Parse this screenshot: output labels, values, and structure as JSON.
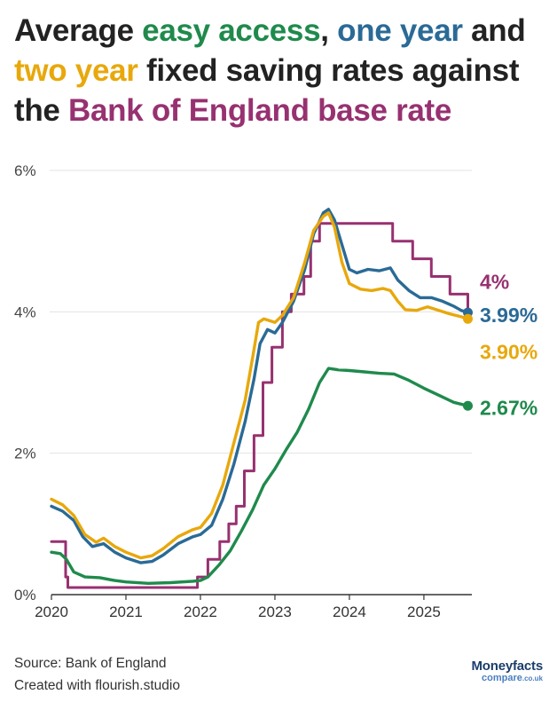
{
  "title": {
    "line1_prefix": "Average ",
    "easy_access": "easy access",
    "sep1": ", ",
    "one_year": "one year",
    "and": " and",
    "two_year": "two year",
    "fixed_text": " fixed saving rates against",
    "the": "the ",
    "boe": "Bank of England base rate"
  },
  "footer": {
    "source": "Source: Bank of England",
    "created": "Created with flourish.studio"
  },
  "logo": {
    "top": "Moneyfacts",
    "bottom": "compare",
    "suffix": ".co.uk"
  },
  "colors": {
    "easy_access": "#1f8a4c",
    "one_year": "#2a6a96",
    "two_year": "#e8a80c",
    "base_rate": "#973170",
    "grid": "#e3e3e3",
    "axis": "#333333"
  },
  "chart_data": {
    "type": "line",
    "xlim": [
      2020.0,
      2025.62
    ],
    "ylim": [
      0,
      6
    ],
    "x_ticks": [
      {
        "value": 2020,
        "label": "2020"
      },
      {
        "value": 2021,
        "label": "2021"
      },
      {
        "value": 2022,
        "label": "2022"
      },
      {
        "value": 2023,
        "label": "2023"
      },
      {
        "value": 2024,
        "label": "2024"
      },
      {
        "value": 2025,
        "label": "2025"
      }
    ],
    "y_ticks": [
      {
        "value": 0,
        "label": "0%"
      },
      {
        "value": 2,
        "label": "2%"
      },
      {
        "value": 4,
        "label": "4%"
      },
      {
        "value": 6,
        "label": "6%"
      }
    ],
    "series": [
      {
        "name": "Bank of England base rate",
        "key": "base_rate",
        "step": true,
        "end_label": "4%",
        "points": [
          [
            2020.0,
            0.75
          ],
          [
            2020.19,
            0.25
          ],
          [
            2020.22,
            0.1
          ],
          [
            2021.96,
            0.25
          ],
          [
            2022.1,
            0.5
          ],
          [
            2022.26,
            0.75
          ],
          [
            2022.38,
            1.0
          ],
          [
            2022.48,
            1.25
          ],
          [
            2022.59,
            1.75
          ],
          [
            2022.72,
            2.25
          ],
          [
            2022.84,
            3.0
          ],
          [
            2022.96,
            3.5
          ],
          [
            2023.1,
            4.0
          ],
          [
            2023.22,
            4.25
          ],
          [
            2023.39,
            4.5
          ],
          [
            2023.48,
            5.0
          ],
          [
            2023.6,
            5.25
          ],
          [
            2024.58,
            5.0
          ],
          [
            2024.85,
            4.75
          ],
          [
            2025.1,
            4.5
          ],
          [
            2025.35,
            4.25
          ],
          [
            2025.59,
            4.0
          ]
        ]
      },
      {
        "name": "one year fixed",
        "key": "one_year",
        "step": false,
        "end_label": "3.99%",
        "points": [
          [
            2020.0,
            1.25
          ],
          [
            2020.15,
            1.18
          ],
          [
            2020.3,
            1.05
          ],
          [
            2020.42,
            0.82
          ],
          [
            2020.55,
            0.68
          ],
          [
            2020.7,
            0.72
          ],
          [
            2020.85,
            0.6
          ],
          [
            2021.0,
            0.52
          ],
          [
            2021.2,
            0.45
          ],
          [
            2021.35,
            0.47
          ],
          [
            2021.5,
            0.56
          ],
          [
            2021.7,
            0.72
          ],
          [
            2021.9,
            0.82
          ],
          [
            2022.0,
            0.85
          ],
          [
            2022.15,
            0.98
          ],
          [
            2022.3,
            1.35
          ],
          [
            2022.45,
            1.85
          ],
          [
            2022.6,
            2.45
          ],
          [
            2022.72,
            3.05
          ],
          [
            2022.8,
            3.55
          ],
          [
            2022.9,
            3.75
          ],
          [
            2023.0,
            3.7
          ],
          [
            2023.1,
            3.85
          ],
          [
            2023.25,
            4.15
          ],
          [
            2023.4,
            4.6
          ],
          [
            2023.52,
            5.1
          ],
          [
            2023.65,
            5.4
          ],
          [
            2023.72,
            5.45
          ],
          [
            2023.8,
            5.3
          ],
          [
            2023.9,
            4.95
          ],
          [
            2024.0,
            4.6
          ],
          [
            2024.1,
            4.55
          ],
          [
            2024.25,
            4.6
          ],
          [
            2024.4,
            4.58
          ],
          [
            2024.55,
            4.62
          ],
          [
            2024.65,
            4.45
          ],
          [
            2024.8,
            4.3
          ],
          [
            2024.95,
            4.2
          ],
          [
            2025.1,
            4.2
          ],
          [
            2025.25,
            4.15
          ],
          [
            2025.4,
            4.08
          ],
          [
            2025.5,
            4.02
          ],
          [
            2025.59,
            3.99
          ]
        ]
      },
      {
        "name": "two year fixed",
        "key": "two_year",
        "step": false,
        "end_label": "3.90%",
        "points": [
          [
            2020.0,
            1.35
          ],
          [
            2020.15,
            1.27
          ],
          [
            2020.3,
            1.12
          ],
          [
            2020.45,
            0.85
          ],
          [
            2020.6,
            0.74
          ],
          [
            2020.7,
            0.8
          ],
          [
            2020.85,
            0.68
          ],
          [
            2021.0,
            0.6
          ],
          [
            2021.2,
            0.52
          ],
          [
            2021.35,
            0.55
          ],
          [
            2021.5,
            0.65
          ],
          [
            2021.7,
            0.82
          ],
          [
            2021.9,
            0.92
          ],
          [
            2022.0,
            0.95
          ],
          [
            2022.15,
            1.15
          ],
          [
            2022.3,
            1.55
          ],
          [
            2022.45,
            2.15
          ],
          [
            2022.6,
            2.75
          ],
          [
            2022.7,
            3.35
          ],
          [
            2022.78,
            3.85
          ],
          [
            2022.85,
            3.9
          ],
          [
            2023.0,
            3.85
          ],
          [
            2023.1,
            3.95
          ],
          [
            2023.25,
            4.2
          ],
          [
            2023.4,
            4.7
          ],
          [
            2023.52,
            5.15
          ],
          [
            2023.65,
            5.35
          ],
          [
            2023.72,
            5.4
          ],
          [
            2023.8,
            5.2
          ],
          [
            2023.9,
            4.7
          ],
          [
            2024.0,
            4.4
          ],
          [
            2024.15,
            4.32
          ],
          [
            2024.3,
            4.3
          ],
          [
            2024.45,
            4.33
          ],
          [
            2024.55,
            4.3
          ],
          [
            2024.65,
            4.15
          ],
          [
            2024.75,
            4.03
          ],
          [
            2024.9,
            4.02
          ],
          [
            2025.05,
            4.07
          ],
          [
            2025.2,
            4.02
          ],
          [
            2025.35,
            3.97
          ],
          [
            2025.5,
            3.93
          ],
          [
            2025.59,
            3.9
          ]
        ]
      },
      {
        "name": "easy access",
        "key": "easy_access",
        "step": false,
        "end_label": "2.67%",
        "points": [
          [
            2020.0,
            0.6
          ],
          [
            2020.12,
            0.58
          ],
          [
            2020.2,
            0.5
          ],
          [
            2020.3,
            0.32
          ],
          [
            2020.45,
            0.25
          ],
          [
            2020.65,
            0.24
          ],
          [
            2020.85,
            0.2
          ],
          [
            2021.0,
            0.18
          ],
          [
            2021.3,
            0.16
          ],
          [
            2021.6,
            0.17
          ],
          [
            2021.9,
            0.19
          ],
          [
            2022.0,
            0.2
          ],
          [
            2022.1,
            0.25
          ],
          [
            2022.25,
            0.42
          ],
          [
            2022.4,
            0.62
          ],
          [
            2022.55,
            0.9
          ],
          [
            2022.7,
            1.2
          ],
          [
            2022.85,
            1.55
          ],
          [
            2023.0,
            1.78
          ],
          [
            2023.15,
            2.05
          ],
          [
            2023.3,
            2.3
          ],
          [
            2023.45,
            2.62
          ],
          [
            2023.6,
            3.0
          ],
          [
            2023.72,
            3.2
          ],
          [
            2023.85,
            3.18
          ],
          [
            2024.0,
            3.17
          ],
          [
            2024.2,
            3.15
          ],
          [
            2024.4,
            3.13
          ],
          [
            2024.6,
            3.12
          ],
          [
            2024.8,
            3.03
          ],
          [
            2025.0,
            2.92
          ],
          [
            2025.2,
            2.82
          ],
          [
            2025.4,
            2.72
          ],
          [
            2025.59,
            2.67
          ]
        ]
      }
    ]
  }
}
